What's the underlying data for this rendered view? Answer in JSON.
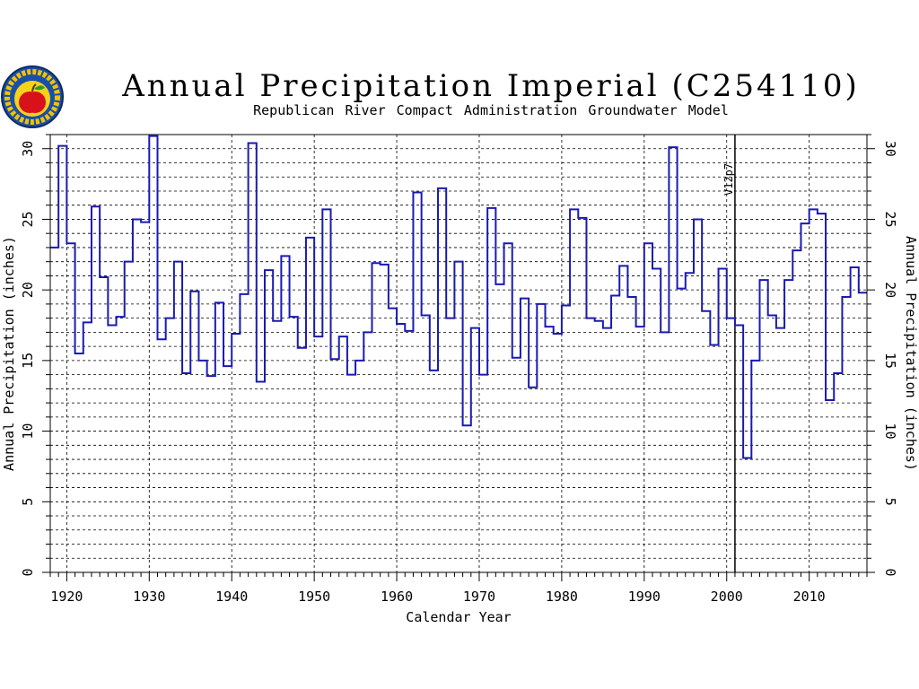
{
  "chart_data": {
    "type": "line",
    "step": true,
    "title": "Annual Precipitation Imperial (C254110)",
    "subtitle": "Republican River Compact Administration Groundwater Model",
    "xlabel": "Calendar Year",
    "ylabel": "Annual Precipitation (inches)",
    "xlim": [
      1918,
      2017
    ],
    "ylim": [
      0,
      31
    ],
    "xticks": [
      1920,
      1930,
      1940,
      1950,
      1960,
      1970,
      1980,
      1990,
      2000,
      2010
    ],
    "yticks": [
      0,
      5,
      10,
      15,
      20,
      25,
      30
    ],
    "grid": true,
    "annotation": {
      "label": "V12p7",
      "x": 2001
    },
    "series_color": "#1a1ab0",
    "x": [
      1918,
      1919,
      1920,
      1921,
      1922,
      1923,
      1924,
      1925,
      1926,
      1927,
      1928,
      1929,
      1930,
      1931,
      1932,
      1933,
      1934,
      1935,
      1936,
      1937,
      1938,
      1939,
      1940,
      1941,
      1942,
      1943,
      1944,
      1945,
      1946,
      1947,
      1948,
      1949,
      1950,
      1951,
      1952,
      1953,
      1954,
      1955,
      1956,
      1957,
      1958,
      1959,
      1960,
      1961,
      1962,
      1963,
      1964,
      1965,
      1966,
      1967,
      1968,
      1969,
      1970,
      1971,
      1972,
      1973,
      1974,
      1975,
      1976,
      1977,
      1978,
      1979,
      1980,
      1981,
      1982,
      1983,
      1984,
      1985,
      1986,
      1987,
      1988,
      1989,
      1990,
      1991,
      1992,
      1993,
      1994,
      1995,
      1996,
      1997,
      1998,
      1999,
      2000,
      2001,
      2002,
      2003,
      2004,
      2005,
      2006,
      2007,
      2008,
      2009,
      2010,
      2011,
      2012,
      2013,
      2014,
      2015,
      2016
    ],
    "values": [
      23.0,
      30.2,
      23.3,
      15.5,
      17.7,
      25.9,
      20.9,
      17.5,
      18.1,
      22.0,
      25.0,
      24.8,
      30.9,
      16.5,
      18.0,
      22.0,
      14.1,
      19.9,
      15.0,
      13.9,
      19.1,
      14.6,
      16.9,
      19.7,
      30.4,
      13.5,
      21.4,
      17.8,
      22.4,
      18.1,
      15.9,
      23.7,
      16.7,
      25.7,
      15.1,
      16.7,
      14.0,
      15.0,
      17.0,
      21.9,
      21.8,
      18.7,
      17.6,
      17.1,
      26.9,
      18.2,
      14.3,
      27.2,
      18.0,
      22.0,
      10.4,
      17.3,
      14.0,
      25.8,
      20.4,
      23.3,
      15.2,
      19.4,
      13.1,
      19.0,
      17.4,
      16.9,
      18.9,
      25.7,
      25.1,
      18.0,
      17.8,
      17.3,
      19.6,
      21.7,
      19.5,
      17.4,
      23.3,
      21.5,
      17.0,
      30.1,
      20.1,
      21.2,
      25.0,
      18.5,
      16.1,
      21.5,
      18.0,
      17.5,
      8.1,
      15.0,
      20.7,
      18.2,
      17.3,
      20.7,
      22.8,
      24.7,
      25.7,
      25.4,
      12.2,
      14.1,
      19.5,
      21.6,
      19.8
    ]
  }
}
